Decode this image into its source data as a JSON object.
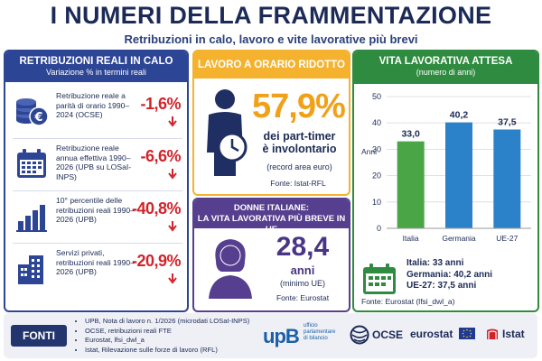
{
  "title": "I NUMERI DELLA FRAMMENTAZIONE",
  "subtitle": "Retribuzioni in calo, lavoro e vite lavorative più brevi",
  "left": {
    "header_title": "RETRIBUZIONI REALI IN CALO",
    "header_subtitle": "Variazione % in termini reali",
    "rows": [
      {
        "icon": "coins-euro-icon",
        "text": "Retribuzione reale a parità di orario 1990–2024 (OCSE)",
        "value": "-1,6%"
      },
      {
        "icon": "calendar-icon",
        "text": "Retribuzione reale annua effettiva 1990–2026 (UPB su LOSaI-INPS)",
        "value": "-6,6%"
      },
      {
        "icon": "bar-chart-icon",
        "text": "10° percentile delle retribuzioni reali 1990–2026 (UPB)",
        "value": "-40,8%"
      },
      {
        "icon": "building-icon",
        "text": "Servizi privati, retribuzioni reali 1990–2026 (UPB)",
        "value": "-20,9%"
      }
    ],
    "colors": {
      "accent": "#2d4595",
      "negative": "#d2232a"
    }
  },
  "part_time": {
    "header": "LAVORO A ORARIO RIDOTTO",
    "value": "57,9%",
    "line1": "dei part-timer",
    "line2": "è involontario",
    "note": "(record area euro)",
    "source": "Fonte: Istat-RFL",
    "color": "#f4b22e"
  },
  "women": {
    "header_line1": "DONNE ITALIANE:",
    "header_line2": "LA VITA LAVORATIVA PIÙ BREVE IN UE",
    "value": "28,4",
    "unit": "anni",
    "note": "(minimo UE)",
    "source": "Fonte: Eurostat",
    "color": "#563f8e"
  },
  "working_life": {
    "header_title": "VITA LAVORATIVA ATTESA",
    "header_subtitle": "(numero di anni)",
    "legend_lines": [
      "Italia: 33 anni",
      "Germania: 40,2 anni",
      "UE-27: 37,5 anni"
    ],
    "source": "Fonte: Eurostat (lfsi_dwl_a)",
    "color": "#2f8b3f"
  },
  "chart_data": {
    "type": "bar",
    "categories": [
      "Italia",
      "Germania",
      "UE-27"
    ],
    "values": [
      33.0,
      40.2,
      37.5
    ],
    "value_labels": [
      "33,0",
      "40,2",
      "37,5"
    ],
    "ylabel": "Anni",
    "ylim": [
      0,
      50
    ],
    "yticks": [
      0,
      10,
      20,
      30,
      40,
      50
    ],
    "bar_colors": [
      "#4aa547",
      "#2c82c9",
      "#2c82c9"
    ],
    "grid": true
  },
  "footer": {
    "label": "FONTI",
    "sources": [
      "UPB, Nota di lavoro n. 1/2026 (microdati LOSaI-INPS)",
      "OCSE, retribuzioni reali FTE",
      "Eurostat, lfsi_dwl_a",
      "Istat, Rilevazione sulle forze di lavoro (RFL)"
    ],
    "logos": {
      "upb": "upB",
      "upb_caption": [
        "ufficio",
        "parlamentare",
        "di bilancio"
      ],
      "ocse": "OCSE",
      "eurostat": "eurostat",
      "istat": "Istat"
    }
  }
}
